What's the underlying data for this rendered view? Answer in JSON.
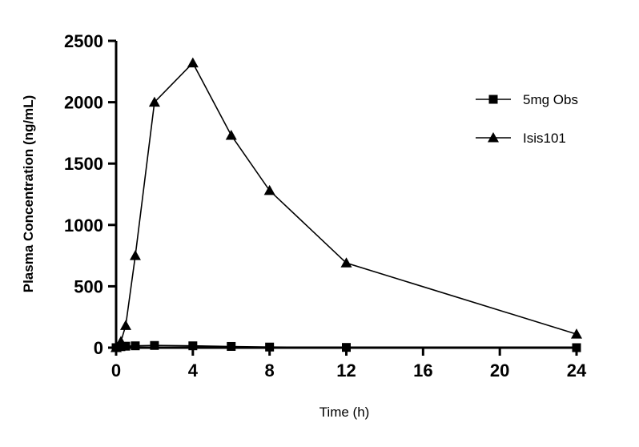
{
  "chart_data": {
    "type": "line",
    "xlabel": "Time (h)",
    "ylabel": "Plasma Concentration (ng/mL)",
    "xlim": [
      0,
      24
    ],
    "ylim": [
      0,
      2500
    ],
    "xticks": [
      0,
      4,
      8,
      12,
      16,
      20,
      24
    ],
    "yticks": [
      0,
      500,
      1000,
      1500,
      2000,
      2500
    ],
    "grid": false,
    "legend_position": "top-right",
    "series": [
      {
        "name": "5mg Obs",
        "marker": "square",
        "x": [
          0,
          0.25,
          0.5,
          1,
          2,
          4,
          6,
          8,
          12,
          24
        ],
        "y": [
          0,
          8,
          12,
          15,
          18,
          15,
          10,
          5,
          2,
          0
        ]
      },
      {
        "name": "Isis101",
        "marker": "triangle",
        "x": [
          0,
          0.25,
          0.5,
          1,
          2,
          4,
          6,
          8,
          12,
          24
        ],
        "y": [
          0,
          50,
          180,
          750,
          2000,
          2320,
          1730,
          1280,
          690,
          110
        ]
      }
    ]
  }
}
